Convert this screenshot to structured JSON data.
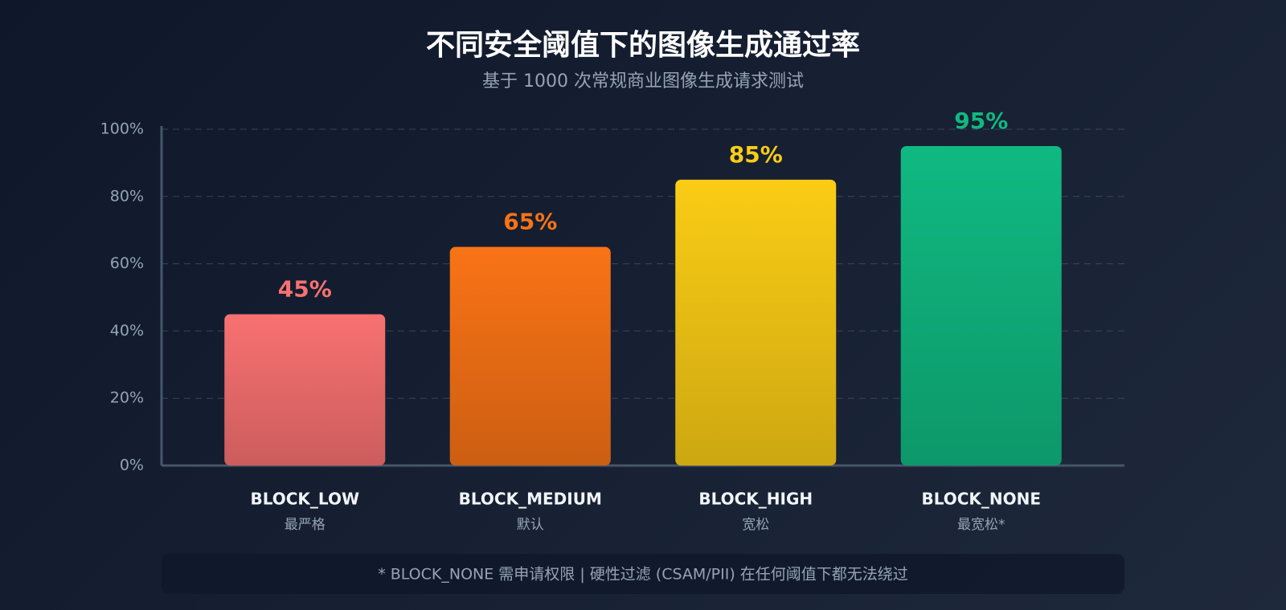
{
  "chart_data": {
    "type": "bar",
    "title": "不同安全阈值下的图像生成通过率",
    "subtitle": "基于 1000 次常规商业图像生成请求测试",
    "categories": [
      "BLOCK_LOW",
      "BLOCK_MEDIUM",
      "BLOCK_HIGH",
      "BLOCK_NONE"
    ],
    "category_notes": [
      "最严格",
      "默认",
      "宽松",
      "最宽松*"
    ],
    "values": [
      45,
      65,
      85,
      95
    ],
    "value_labels": [
      "45%",
      "65%",
      "85%",
      "95%"
    ],
    "colors": [
      "#f87171",
      "#f97316",
      "#facc15",
      "#10b981"
    ],
    "ylim": [
      0,
      100
    ],
    "yticks": [
      {
        "value": 0,
        "label": "0%"
      },
      {
        "value": 20,
        "label": "20%"
      },
      {
        "value": 40,
        "label": "40%"
      },
      {
        "value": 60,
        "label": "60%"
      },
      {
        "value": 80,
        "label": "80%"
      },
      {
        "value": 100,
        "label": "100%"
      }
    ],
    "grid": true,
    "footnote": "* BLOCK_NONE 需申请权限 | 硬性过滤 (CSAM/PII) 在任何阈值下都无法绕过"
  }
}
